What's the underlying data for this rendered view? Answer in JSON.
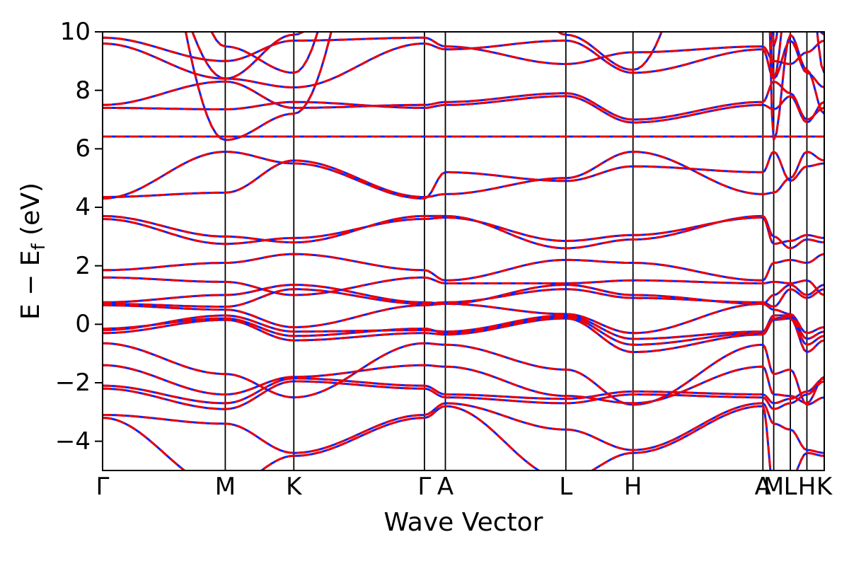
{
  "figure": {
    "background": "#ffffff",
    "frame_color": "#000000"
  },
  "chart_data": {
    "type": "line",
    "title": "",
    "xlabel": "Wave Vector",
    "ylabel": "E − E_f (eV)",
    "ylabel_parts": {
      "main": "E − E",
      "sub": "f",
      "unit": " (eV)"
    },
    "ylim": [
      -5,
      10
    ],
    "yticks": [
      -4,
      -2,
      0,
      2,
      4,
      6,
      8,
      10
    ],
    "grid": "vertical-kpoint-lines-only",
    "legend": "none",
    "kpoint_labels": [
      "Γ",
      "M",
      "K",
      "Γ",
      "A",
      "L",
      "H",
      "A",
      "M",
      "L",
      "H",
      "K"
    ],
    "kpoint_positions": [
      0,
      0.17,
      0.265,
      0.446,
      0.475,
      0.642,
      0.735,
      0.915,
      0.93,
      0.953,
      0.976,
      1
    ],
    "path_order": [
      "G",
      "M",
      "K",
      "G",
      "A",
      "L",
      "H",
      "A",
      "M",
      "L",
      "H",
      "K"
    ],
    "series": [
      {
        "name": "solid-blue-bands",
        "color": "#0b24f5",
        "style": "solid",
        "dash": "none",
        "width": 3
      },
      {
        "name": "dashed-red-bands",
        "color": "#e8000b",
        "style": "dashed",
        "dash": "13 6",
        "width": 3
      }
    ],
    "bands": [
      {
        "G": -3.2,
        "M": -5.6,
        "K": -4.5,
        "A": -2.8,
        "L": -5.3,
        "H": -4.4
      },
      {
        "G": -3.1,
        "M": -3.4,
        "K": -4.4,
        "A": -2.7,
        "L": -3.6,
        "H": -4.3
      },
      {
        "G": -2.2,
        "M": -2.9,
        "K": -1.95,
        "A": -2.5,
        "L": -2.7,
        "H": -2.4
      },
      {
        "G": -2.1,
        "M": -2.7,
        "K": -1.85,
        "A": -2.4,
        "L": -2.55,
        "H": -2.3
      },
      {
        "G": -1.4,
        "M": -2.4,
        "K": -1.8,
        "A": -1.45,
        "L": -2.45,
        "H": -2.7
      },
      {
        "G": -0.65,
        "M": -1.7,
        "K": -2.5,
        "A": -0.7,
        "L": -1.55,
        "H": -2.75
      },
      {
        "G": -0.3,
        "M": 0.15,
        "K": -0.55,
        "A": -0.35,
        "L": 0.2,
        "H": -0.95
      },
      {
        "G": -0.2,
        "M": 0.3,
        "K": -0.25,
        "A": -0.25,
        "L": 0.3,
        "H": -0.5
      },
      {
        "G": -0.15,
        "M": 0.2,
        "K": -0.4,
        "A": -0.3,
        "L": 0.25,
        "H": -0.7
      },
      {
        "G": 0.65,
        "M": 0.5,
        "K": -0.1,
        "A": 0.7,
        "L": 0.35,
        "H": -0.3
      },
      {
        "G": 0.7,
        "M": 0.6,
        "K": 1.2,
        "A": 0.75,
        "L": 1.2,
        "H": 0.9
      },
      {
        "G": 0.75,
        "M": 1.0,
        "K": 1.35,
        "A": 0.7,
        "L": 1.35,
        "H": 1.0
      },
      {
        "G": 1.6,
        "M": 1.45,
        "K": 1.0,
        "A": 1.4,
        "L": 1.4,
        "H": 1.5
      },
      {
        "G": 1.85,
        "M": 2.1,
        "K": 2.4,
        "A": 1.5,
        "L": 2.2,
        "H": 2.1
      },
      {
        "G": 3.7,
        "M": 3.0,
        "K": 2.8,
        "A": 3.7,
        "L": 2.6,
        "H": 2.9
      },
      {
        "G": 3.6,
        "M": 2.75,
        "K": 2.95,
        "A": 3.65,
        "L": 2.85,
        "H": 3.05
      },
      {
        "G": 4.35,
        "M": 4.5,
        "K": 5.6,
        "A": 4.45,
        "L": 5.0,
        "H": 5.9
      },
      {
        "G": 4.3,
        "M": 5.9,
        "K": 5.5,
        "A": 5.2,
        "L": 4.9,
        "H": 5.4
      },
      {
        "G": 6.42,
        "M": 6.42,
        "K": 6.42,
        "A": 6.42,
        "L": 6.42,
        "H": 6.42
      },
      {
        "G": 7.4,
        "M": 7.35,
        "K": 7.6,
        "A": 7.5,
        "L": 7.8,
        "H": 6.9
      },
      {
        "G": 7.5,
        "M": 8.3,
        "K": 7.4,
        "A": 7.6,
        "L": 7.9,
        "H": 7.0
      },
      {
        "G": 9.6,
        "M": 8.4,
        "K": 8.1,
        "A": 9.4,
        "L": 9.7,
        "H": 8.6
      },
      {
        "G": 9.8,
        "M": 9.0,
        "K": 9.7,
        "A": 9.5,
        "L": 8.9,
        "H": 9.3
      },
      {
        "G": 22,
        "M": 6.3,
        "K": 7.2,
        "A": 20,
        "L": 9.9,
        "H": 8.7
      },
      {
        "G": 18,
        "M": 8.4,
        "K": 9.9,
        "A": 17,
        "L": 12,
        "H": 11
      },
      {
        "G": 26,
        "M": 9.5,
        "K": 8.6,
        "A": 24,
        "L": 14,
        "H": 12.5
      }
    ]
  }
}
